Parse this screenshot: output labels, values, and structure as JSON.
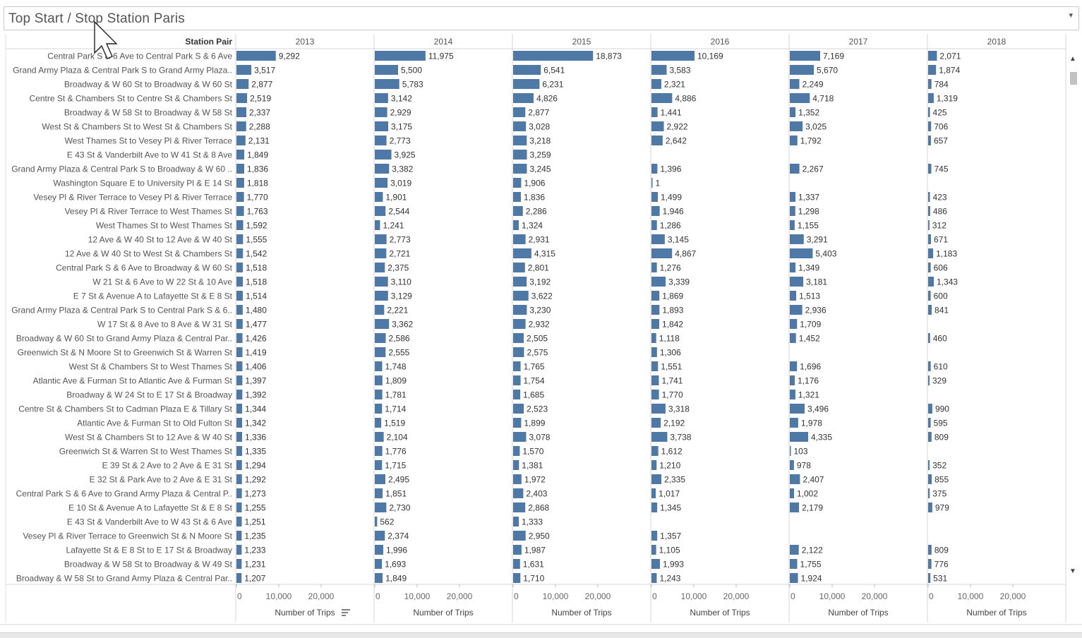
{
  "title": "Top Start / Stop Station Paris",
  "row_header": "Station Pair",
  "axis_label": "Number of Trips",
  "colors": {
    "bar": "#4e79a7"
  },
  "chart_data": {
    "type": "bar",
    "orientation": "horizontal",
    "xlim": [
      0,
      25000
    ],
    "xticks": [
      "0",
      "10,000",
      "20,000"
    ],
    "xtick_values": [
      0,
      10000,
      20000
    ],
    "xlabel": "Number of Trips",
    "sorted_by": "2013",
    "columns": [
      "2013",
      "2014",
      "2015",
      "2016",
      "2017",
      "2018"
    ],
    "categories": [
      "Central Park S & 6 Ave to Central Park S & 6 Ave",
      "Grand Army Plaza & Central Park S to Grand Army Plaza..",
      "Broadway & W 60 St to Broadway & W 60 St",
      "Centre St & Chambers St to Centre St & Chambers St",
      "Broadway & W 58 St to Broadway & W 58 St",
      "West St & Chambers St to West St & Chambers St",
      "West Thames St to Vesey Pl & River Terrace",
      "E 43 St & Vanderbilt Ave to W 41 St & 8 Ave",
      "Grand Army Plaza & Central Park S to Broadway & W 60 ..",
      "Washington Square E to University Pl & E 14 St",
      "Vesey Pl & River Terrace to Vesey Pl & River Terrace",
      "Vesey Pl & River Terrace to West Thames St",
      "West Thames St to West Thames St",
      "12 Ave & W 40 St to 12 Ave & W 40 St",
      "12 Ave & W 40 St to West St & Chambers St",
      "Central Park S & 6 Ave to Broadway & W 60 St",
      "W 21 St & 6 Ave to W 22 St & 10 Ave",
      "E 7 St & Avenue A to Lafayette St & E 8 St",
      "Grand Army Plaza & Central Park S to Central Park S & 6..",
      "W 17 St & 8 Ave to 8 Ave & W 31 St",
      "Broadway & W 60 St to Grand Army Plaza & Central Par..",
      "Greenwich St & N Moore St to Greenwich St & Warren St",
      "West St & Chambers St to West Thames St",
      "Atlantic Ave & Furman St to Atlantic Ave & Furman St",
      "Broadway & W 24 St to E 17 St & Broadway",
      "Centre St & Chambers St to Cadman Plaza E & Tillary St",
      "Atlantic Ave & Furman St to Old Fulton St",
      "West St & Chambers St to 12 Ave & W 40 St",
      "Greenwich St & Warren St to West Thames St",
      "E 39 St & 2 Ave to 2 Ave & E 31 St",
      "E 32 St & Park Ave to 2 Ave & E 31 St",
      "Central Park S & 6 Ave to Grand Army Plaza & Central P..",
      "E 10 St & Avenue A to Lafayette St & E 8 St",
      "E 43 St & Vanderbilt Ave to W 43 St & 6 Ave",
      "Vesey Pl & River Terrace to Greenwich St & N Moore St",
      "Lafayette St & E 8 St to E 17 St & Broadway",
      "Broadway & W 58 St to Broadway & W 49 St",
      "Broadway & W 58 St to Grand Army Plaza & Central Par.."
    ],
    "series": [
      {
        "name": "2013",
        "values": [
          9292,
          3517,
          2877,
          2519,
          2337,
          2288,
          2131,
          1849,
          1836,
          1818,
          1770,
          1763,
          1592,
          1555,
          1542,
          1518,
          1518,
          1514,
          1480,
          1477,
          1426,
          1419,
          1406,
          1397,
          1392,
          1344,
          1342,
          1336,
          1335,
          1294,
          1292,
          1273,
          1255,
          1251,
          1235,
          1233,
          1231,
          1207
        ]
      },
      {
        "name": "2014",
        "values": [
          11975,
          5500,
          5783,
          3142,
          2929,
          3175,
          2773,
          3925,
          3382,
          3019,
          1901,
          2544,
          1241,
          2773,
          2721,
          2375,
          3110,
          3129,
          2221,
          3362,
          2586,
          2555,
          1748,
          1809,
          1781,
          1714,
          1519,
          2104,
          1776,
          1715,
          2495,
          1851,
          2730,
          562,
          2374,
          1996,
          1693,
          1849
        ]
      },
      {
        "name": "2015",
        "values": [
          18873,
          6541,
          6231,
          4826,
          2877,
          3028,
          3218,
          3259,
          3245,
          1906,
          1836,
          2286,
          1324,
          2931,
          4315,
          2801,
          3192,
          3622,
          3230,
          2932,
          2505,
          2575,
          1765,
          1754,
          1685,
          2523,
          1899,
          3078,
          1570,
          1381,
          1972,
          2403,
          2868,
          1333,
          2950,
          1987,
          1631,
          1710
        ]
      },
      {
        "name": "2016",
        "values": [
          10169,
          3583,
          2321,
          4886,
          1441,
          2922,
          2642,
          null,
          1396,
          1,
          1499,
          1946,
          1286,
          3145,
          4867,
          1276,
          3339,
          1869,
          1893,
          1842,
          1118,
          1306,
          1551,
          1741,
          1770,
          3318,
          2192,
          3738,
          1612,
          1210,
          2335,
          1017,
          1345,
          null,
          1357,
          1105,
          1993,
          1243
        ]
      },
      {
        "name": "2017",
        "values": [
          7169,
          5670,
          2249,
          4718,
          1352,
          3025,
          1792,
          null,
          2267,
          null,
          1337,
          1298,
          1155,
          3291,
          5403,
          1349,
          3181,
          1513,
          2936,
          1709,
          1452,
          null,
          1696,
          1176,
          1321,
          3496,
          1978,
          4335,
          103,
          978,
          2407,
          1002,
          2179,
          null,
          null,
          2122,
          1755,
          1924
        ]
      },
      {
        "name": "2018",
        "values": [
          2071,
          1874,
          784,
          1319,
          425,
          706,
          657,
          null,
          745,
          null,
          423,
          486,
          312,
          671,
          1183,
          606,
          1343,
          600,
          841,
          null,
          460,
          null,
          610,
          329,
          null,
          990,
          595,
          809,
          null,
          352,
          855,
          375,
          979,
          null,
          null,
          809,
          776,
          531
        ]
      }
    ]
  }
}
